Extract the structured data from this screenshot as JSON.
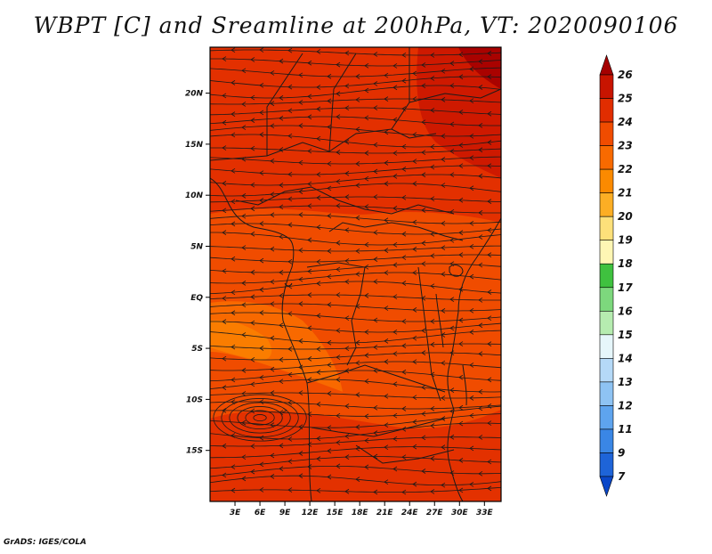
{
  "title": "WBPT [C] and Sreamline at 200hPa, VT: 2020090106",
  "credit": "GrADS: IGES/COLA",
  "map": {
    "lat_labels": [
      "20N",
      "15N",
      "10N",
      "5N",
      "EQ",
      "5S",
      "10S",
      "15S"
    ],
    "lat_values": [
      20,
      15,
      10,
      5,
      0,
      -5,
      -10,
      -15
    ],
    "lon_labels": [
      "3E",
      "6E",
      "9E",
      "12E",
      "15E",
      "18E",
      "21E",
      "24E",
      "27E",
      "30E",
      "33E"
    ],
    "lon_values": [
      3,
      6,
      9,
      12,
      15,
      18,
      21,
      24,
      27,
      30,
      33
    ],
    "lon_range": [
      0,
      35
    ],
    "lat_range": [
      -20,
      24.5
    ]
  },
  "colorbar": {
    "labels": [
      "26",
      "25",
      "24",
      "23",
      "22",
      "21",
      "20",
      "19",
      "18",
      "17",
      "16",
      "15",
      "14",
      "13",
      "12",
      "11",
      "9",
      "7"
    ],
    "colors": [
      "#a50000",
      "#c81400",
      "#e12d00",
      "#f04c00",
      "#f86a00",
      "#fb8a00",
      "#fcae24",
      "#fde07a",
      "#fef6b4",
      "#3fc13f",
      "#7dd87d",
      "#b6ecb0",
      "#e6f6fa",
      "#b5d9f7",
      "#8ec3f3",
      "#5ea4ee",
      "#3a86e5",
      "#1e64d8",
      "#0a47c8"
    ]
  },
  "field_colors": {
    "c24": "#e12d00",
    "c23": "#f04c00",
    "c22": "#f86a00",
    "c25": "#c81400",
    "c26": "#a50000"
  }
}
